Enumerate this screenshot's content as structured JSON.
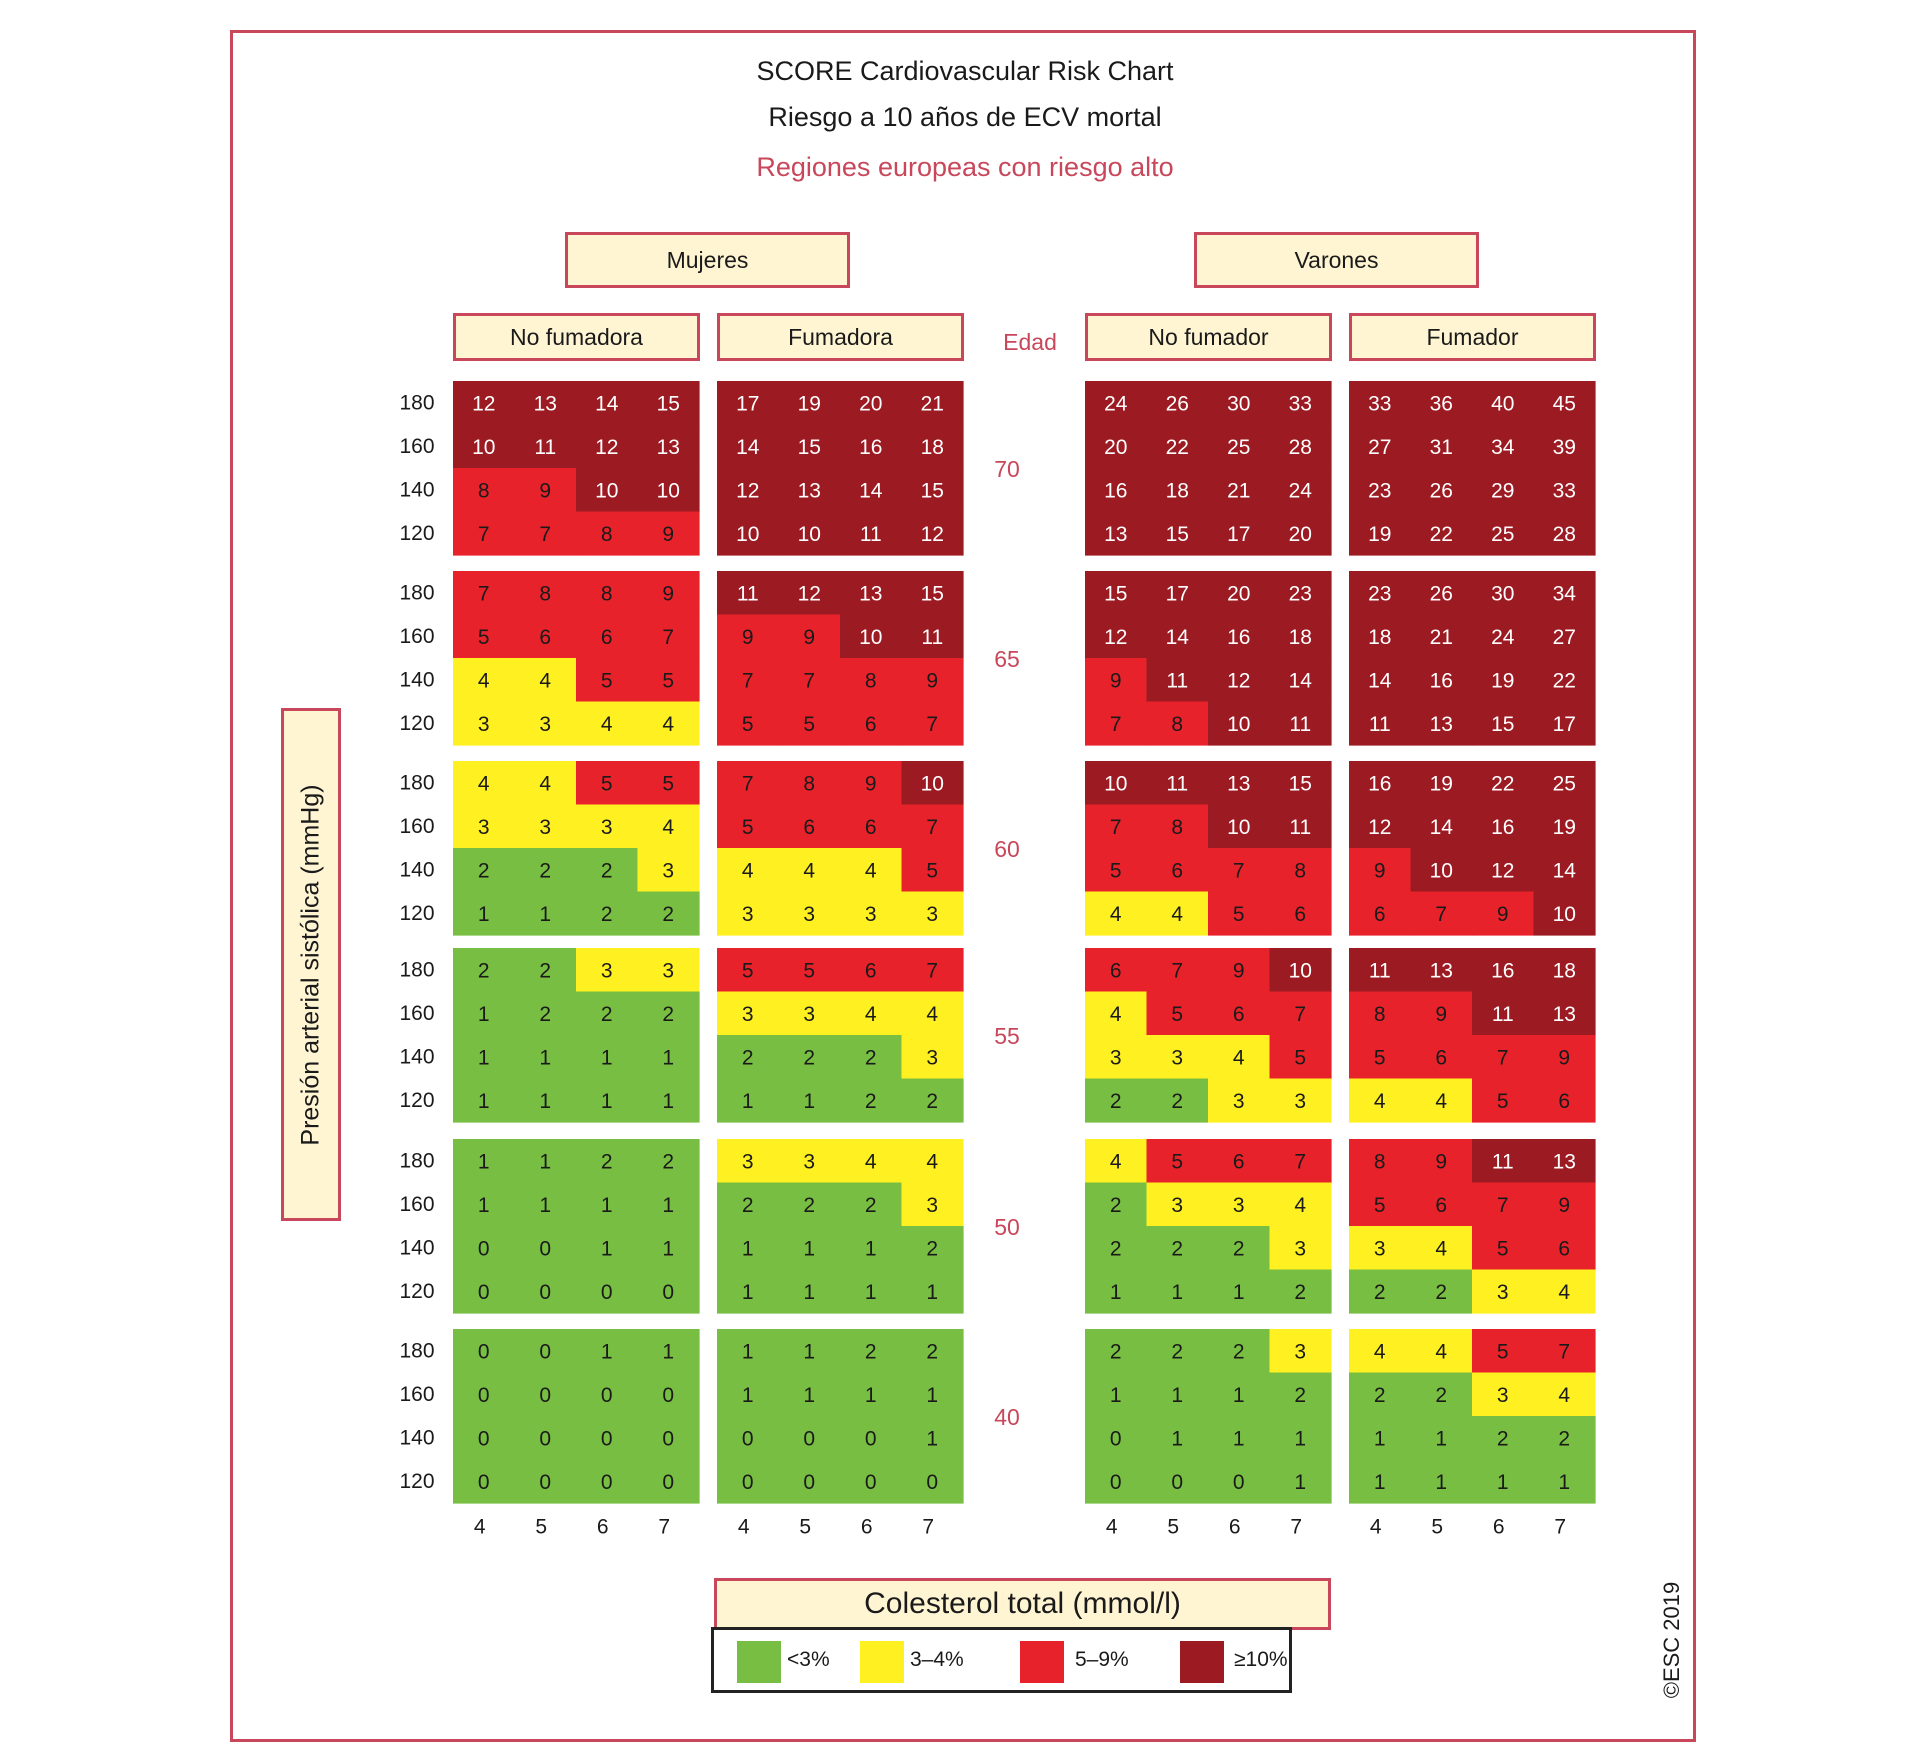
{
  "chart_data": {
    "type": "heatmap",
    "title": "SCORE Cardiovascular Risk Chart",
    "subtitle": "Riesgo a 10 años de ECV mortal",
    "region": "Regiones europeas con riesgo alto",
    "sex_labels": [
      "Mujeres",
      "Varones"
    ],
    "panel_labels": [
      "No fumadora",
      "Fumadora",
      "No fumador",
      "Fumador"
    ],
    "age_label": "Edad",
    "ages": [
      "70",
      "65",
      "60",
      "55",
      "50",
      "40"
    ],
    "sbp_ticks": [
      "180",
      "160",
      "140",
      "120"
    ],
    "chol_ticks": [
      "4",
      "5",
      "6",
      "7"
    ],
    "ylabel": "Presión arterial sistólica (mmHg)",
    "xlabel": "Colesterol total (mmol/l)",
    "legend": [
      {
        "label": "<3%",
        "color": "#78be43"
      },
      {
        "label": "3–4%",
        "color": "#fff022"
      },
      {
        "label": "5–9%",
        "color": "#e8222b"
      },
      {
        "label": "≥10%",
        "color": "#9c1a22"
      }
    ],
    "thresholds": [
      3,
      5,
      10
    ],
    "values": [
      [
        [
          [
            12,
            13,
            14,
            15
          ],
          [
            10,
            11,
            12,
            13
          ],
          [
            8,
            9,
            10,
            10
          ],
          [
            7,
            7,
            8,
            9
          ]
        ],
        [
          [
            7,
            8,
            8,
            9
          ],
          [
            5,
            6,
            6,
            7
          ],
          [
            4,
            4,
            5,
            5
          ],
          [
            3,
            3,
            4,
            4
          ]
        ],
        [
          [
            4,
            4,
            5,
            5
          ],
          [
            3,
            3,
            3,
            4
          ],
          [
            2,
            2,
            2,
            3
          ],
          [
            1,
            1,
            2,
            2
          ]
        ],
        [
          [
            2,
            2,
            3,
            3
          ],
          [
            1,
            2,
            2,
            2
          ],
          [
            1,
            1,
            1,
            1
          ],
          [
            1,
            1,
            1,
            1
          ]
        ],
        [
          [
            1,
            1,
            2,
            2
          ],
          [
            1,
            1,
            1,
            1
          ],
          [
            0,
            0,
            1,
            1
          ],
          [
            0,
            0,
            0,
            0
          ]
        ],
        [
          [
            0,
            0,
            1,
            1
          ],
          [
            0,
            0,
            0,
            0
          ],
          [
            0,
            0,
            0,
            0
          ],
          [
            0,
            0,
            0,
            0
          ]
        ]
      ],
      [
        [
          [
            17,
            19,
            20,
            21
          ],
          [
            14,
            15,
            16,
            18
          ],
          [
            12,
            13,
            14,
            15
          ],
          [
            10,
            10,
            11,
            12
          ]
        ],
        [
          [
            11,
            12,
            13,
            15
          ],
          [
            9,
            9,
            10,
            11
          ],
          [
            7,
            7,
            8,
            9
          ],
          [
            5,
            5,
            6,
            7
          ]
        ],
        [
          [
            7,
            8,
            9,
            10
          ],
          [
            5,
            6,
            6,
            7
          ],
          [
            4,
            4,
            4,
            5
          ],
          [
            3,
            3,
            3,
            3
          ]
        ],
        [
          [
            5,
            5,
            6,
            7
          ],
          [
            3,
            3,
            4,
            4
          ],
          [
            2,
            2,
            2,
            3
          ],
          [
            1,
            1,
            2,
            2
          ]
        ],
        [
          [
            3,
            3,
            4,
            4
          ],
          [
            2,
            2,
            2,
            3
          ],
          [
            1,
            1,
            1,
            2
          ],
          [
            1,
            1,
            1,
            1
          ]
        ],
        [
          [
            1,
            1,
            2,
            2
          ],
          [
            1,
            1,
            1,
            1
          ],
          [
            0,
            0,
            0,
            1
          ],
          [
            0,
            0,
            0,
            0
          ]
        ]
      ],
      [
        [
          [
            24,
            26,
            30,
            33
          ],
          [
            20,
            22,
            25,
            28
          ],
          [
            16,
            18,
            21,
            24
          ],
          [
            13,
            15,
            17,
            20
          ]
        ],
        [
          [
            15,
            17,
            20,
            23
          ],
          [
            12,
            14,
            16,
            18
          ],
          [
            9,
            11,
            12,
            14
          ],
          [
            7,
            8,
            10,
            11
          ]
        ],
        [
          [
            10,
            11,
            13,
            15
          ],
          [
            7,
            8,
            10,
            11
          ],
          [
            5,
            6,
            7,
            8
          ],
          [
            4,
            4,
            5,
            6
          ]
        ],
        [
          [
            6,
            7,
            9,
            10
          ],
          [
            4,
            5,
            6,
            7
          ],
          [
            3,
            3,
            4,
            5
          ],
          [
            2,
            2,
            3,
            3
          ]
        ],
        [
          [
            4,
            5,
            6,
            7
          ],
          [
            2,
            3,
            3,
            4
          ],
          [
            2,
            2,
            2,
            3
          ],
          [
            1,
            1,
            1,
            2
          ]
        ],
        [
          [
            2,
            2,
            2,
            3
          ],
          [
            1,
            1,
            1,
            2
          ],
          [
            0,
            1,
            1,
            1
          ],
          [
            0,
            0,
            0,
            1
          ]
        ]
      ],
      [
        [
          [
            33,
            36,
            40,
            45
          ],
          [
            27,
            31,
            34,
            39
          ],
          [
            23,
            26,
            29,
            33
          ],
          [
            19,
            22,
            25,
            28
          ]
        ],
        [
          [
            23,
            26,
            30,
            34
          ],
          [
            18,
            21,
            24,
            27
          ],
          [
            14,
            16,
            19,
            22
          ],
          [
            11,
            13,
            15,
            17
          ]
        ],
        [
          [
            16,
            19,
            22,
            25
          ],
          [
            12,
            14,
            16,
            19
          ],
          [
            9,
            10,
            12,
            14
          ],
          [
            6,
            7,
            9,
            10
          ]
        ],
        [
          [
            11,
            13,
            16,
            18
          ],
          [
            8,
            9,
            11,
            13
          ],
          [
            5,
            6,
            7,
            9
          ],
          [
            4,
            4,
            5,
            6
          ]
        ],
        [
          [
            8,
            9,
            11,
            13
          ],
          [
            5,
            6,
            7,
            9
          ],
          [
            3,
            4,
            5,
            6
          ],
          [
            2,
            2,
            3,
            4
          ]
        ],
        [
          [
            4,
            4,
            5,
            7
          ],
          [
            2,
            2,
            3,
            4
          ],
          [
            1,
            1,
            2,
            2
          ],
          [
            1,
            1,
            1,
            1
          ]
        ]
      ]
    ]
  },
  "copyright": "©ESC 2019"
}
